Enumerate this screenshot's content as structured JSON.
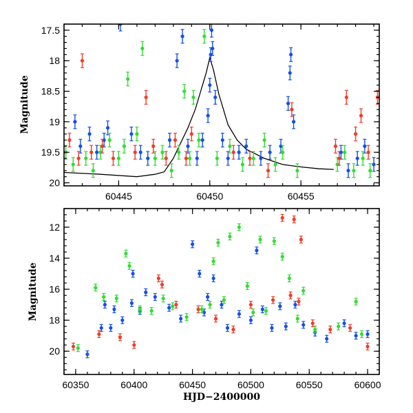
{
  "chart_data": [
    {
      "type": "scatter",
      "panel": "top",
      "title": "",
      "xlabel": "",
      "ylabel": "Magnitude",
      "xlim": [
        60442.0,
        60459.3
      ],
      "ylim": [
        20.05,
        17.4
      ],
      "y_inverted": true,
      "x_ticks": [
        60445,
        60450,
        60455
      ],
      "x_tick_labels": [
        "60445",
        "60450",
        "60455"
      ],
      "y_ticks": [
        17.5,
        18,
        18.5,
        19,
        19.5,
        20
      ],
      "y_tick_labels": [
        "17.5",
        "18",
        "18.5",
        "19",
        "19.5",
        "20"
      ],
      "grid": false,
      "legend": "none",
      "colors": {
        "blue": "#1450e6",
        "green": "#32dc32",
        "red": "#f03c28",
        "model": "#000000"
      },
      "model_curve": {
        "name": "",
        "x": [
          60442.0,
          60444.0,
          60446.0,
          60447.0,
          60447.5,
          60448.0,
          60448.4,
          60448.8,
          60449.2,
          60449.5,
          60449.8,
          60450.0,
          60450.2,
          60450.5,
          60451.0,
          60451.5,
          60452.0,
          60453.0,
          60454.0,
          60455.0,
          60456.0,
          60456.8
        ],
        "y": [
          19.83,
          19.86,
          19.9,
          19.86,
          19.82,
          19.6,
          19.35,
          19.1,
          18.8,
          18.5,
          18.2,
          17.95,
          18.15,
          18.55,
          19.05,
          19.3,
          19.45,
          19.6,
          19.7,
          19.74,
          19.77,
          19.78
        ]
      },
      "series": [
        {
          "color": "blue",
          "points": [
            [
              60442.6,
              19.0
            ],
            [
              60442.9,
              19.4
            ],
            [
              60443.4,
              19.2
            ],
            [
              60443.8,
              19.5
            ],
            [
              60444.2,
              19.3
            ],
            [
              60444.4,
              19.1
            ],
            [
              60445.1,
              17.4
            ],
            [
              60445.7,
              19.2
            ],
            [
              60446.2,
              19.5
            ],
            [
              60446.6,
              19.6
            ],
            [
              60447.8,
              19.3
            ],
            [
              60448.2,
              18.0
            ],
            [
              60448.5,
              17.6
            ],
            [
              60448.8,
              19.4
            ],
            [
              60449.3,
              19.6
            ],
            [
              60449.6,
              19.3
            ],
            [
              60449.9,
              18.9
            ],
            [
              60450.0,
              18.4
            ],
            [
              60450.05,
              17.9
            ],
            [
              60450.1,
              17.5
            ],
            [
              60450.15,
              17.8
            ],
            [
              60450.3,
              18.6
            ],
            [
              60450.7,
              19.3
            ],
            [
              60451.0,
              19.6
            ],
            [
              60451.6,
              19.5
            ],
            [
              60452.0,
              19.4
            ],
            [
              60452.8,
              19.6
            ],
            [
              60453.3,
              19.5
            ],
            [
              60453.9,
              19.4
            ],
            [
              60454.3,
              18.7
            ],
            [
              60454.4,
              18.2
            ],
            [
              60454.45,
              17.9
            ],
            [
              60454.6,
              19.0
            ],
            [
              60457.2,
              19.5
            ],
            [
              60457.6,
              19.8
            ],
            [
              60458.1,
              19.6
            ],
            [
              60458.5,
              19.4
            ],
            [
              60459.0,
              19.7
            ]
          ]
        },
        {
          "color": "green",
          "points": [
            [
              60442.1,
              19.5
            ],
            [
              60442.5,
              19.7
            ],
            [
              60443.2,
              19.6
            ],
            [
              60443.6,
              19.8
            ],
            [
              60444.0,
              19.5
            ],
            [
              60444.5,
              19.3
            ],
            [
              60445.0,
              19.6
            ],
            [
              60445.3,
              19.4
            ],
            [
              60445.5,
              18.3
            ],
            [
              60446.0,
              19.2
            ],
            [
              60446.3,
              17.8
            ],
            [
              60447.0,
              19.6
            ],
            [
              60447.4,
              19.5
            ],
            [
              60447.9,
              19.8
            ],
            [
              60448.3,
              19.5
            ],
            [
              60448.6,
              18.5
            ],
            [
              60448.9,
              19.6
            ],
            [
              60449.1,
              18.6
            ],
            [
              60449.4,
              19.3
            ],
            [
              60449.7,
              17.6
            ],
            [
              60450.4,
              19.6
            ],
            [
              60451.1,
              19.4
            ],
            [
              60451.8,
              19.7
            ],
            [
              60452.4,
              19.6
            ],
            [
              60453.0,
              19.3
            ],
            [
              60453.6,
              19.7
            ],
            [
              60454.0,
              19.5
            ],
            [
              60454.8,
              19.8
            ],
            [
              60457.0,
              19.7
            ],
            [
              60457.4,
              19.5
            ],
            [
              60457.9,
              19.8
            ],
            [
              60458.4,
              19.6
            ],
            [
              60458.8,
              19.8
            ]
          ]
        },
        {
          "color": "red",
          "points": [
            [
              60442.3,
              19.3
            ],
            [
              60442.8,
              19.6
            ],
            [
              60443.0,
              18.0
            ],
            [
              60443.5,
              19.5
            ],
            [
              60444.1,
              19.4
            ],
            [
              60444.7,
              19.6
            ],
            [
              60445.9,
              19.5
            ],
            [
              60446.5,
              18.6
            ],
            [
              60446.9,
              19.4
            ],
            [
              60447.6,
              19.6
            ],
            [
              60448.1,
              19.3
            ],
            [
              60448.7,
              19.6
            ],
            [
              60449.0,
              19.2
            ],
            [
              60451.3,
              19.5
            ],
            [
              60452.2,
              19.6
            ],
            [
              60453.2,
              19.8
            ],
            [
              60454.5,
              18.8
            ],
            [
              60456.9,
              19.4
            ],
            [
              60457.1,
              19.6
            ],
            [
              60457.5,
              18.6
            ],
            [
              60458.0,
              19.2
            ],
            [
              60458.3,
              18.9
            ],
            [
              60458.7,
              19.5
            ],
            [
              60459.2,
              18.6
            ]
          ]
        }
      ]
    },
    {
      "type": "scatter",
      "panel": "bottom",
      "title": "",
      "xlabel": "HJD−2400000",
      "ylabel": "Magnitude",
      "xlim": [
        60340,
        60610
      ],
      "ylim": [
        21.5,
        10.8
      ],
      "y_inverted": true,
      "x_ticks": [
        60350,
        60400,
        60450,
        60500,
        60550,
        60600
      ],
      "x_tick_labels": [
        "60350",
        "60400",
        "60450",
        "60500",
        "60550",
        "60600"
      ],
      "y_ticks": [
        12,
        14,
        16,
        18,
        20
      ],
      "y_tick_labels": [
        "12",
        "14",
        "16",
        "18",
        "20"
      ],
      "grid": false,
      "legend": "none",
      "series": [
        {
          "color": "blue",
          "points": [
            [
              60360,
              20.2
            ],
            [
              60372,
              18.5
            ],
            [
              60375,
              17.0
            ],
            [
              60380,
              18.5
            ],
            [
              60383,
              17.3
            ],
            [
              60390,
              18.0
            ],
            [
              60398,
              16.9
            ],
            [
              60399,
              15.0
            ],
            [
              60405,
              17.4
            ],
            [
              60410,
              16.2
            ],
            [
              60418,
              16.5
            ],
            [
              60430,
              17.2
            ],
            [
              60440,
              17.9
            ],
            [
              60450,
              13.1
            ],
            [
              60456,
              15.0
            ],
            [
              60460,
              17.5
            ],
            [
              60463,
              16.5
            ],
            [
              60468,
              15.3
            ],
            [
              60475,
              17.0
            ],
            [
              60480,
              18.5
            ],
            [
              60490,
              17.6
            ],
            [
              60500,
              18.0
            ],
            [
              60505,
              13.5
            ],
            [
              60510,
              17.3
            ],
            [
              60518,
              18.5
            ],
            [
              60525,
              17.1
            ],
            [
              60530,
              18.4
            ],
            [
              60538,
              17.0
            ],
            [
              60545,
              18.3
            ],
            [
              60555,
              18.8
            ],
            [
              60565,
              19.2
            ],
            [
              60580,
              18.2
            ],
            [
              60590,
              19.0
            ],
            [
              60600,
              18.9
            ]
          ]
        },
        {
          "color": "green",
          "points": [
            [
              60352,
              19.8
            ],
            [
              60367,
              15.9
            ],
            [
              60374,
              16.5
            ],
            [
              60385,
              16.6
            ],
            [
              60393,
              13.7
            ],
            [
              60396,
              14.5
            ],
            [
              60405,
              17.3
            ],
            [
              60415,
              17.4
            ],
            [
              60425,
              16.6
            ],
            [
              60433,
              17.1
            ],
            [
              60445,
              17.8
            ],
            [
              60458,
              17.3
            ],
            [
              60465,
              17.0
            ],
            [
              60468,
              14.2
            ],
            [
              60472,
              13.0
            ],
            [
              60477,
              16.7
            ],
            [
              60482,
              12.6
            ],
            [
              60490,
              12.0
            ],
            [
              60497,
              15.8
            ],
            [
              60502,
              17.5
            ],
            [
              60508,
              12.8
            ],
            [
              60513,
              17.4
            ],
            [
              60520,
              12.9
            ],
            [
              60527,
              13.9
            ],
            [
              60533,
              15.3
            ],
            [
              60540,
              17.9
            ],
            [
              60545,
              16.1
            ],
            [
              60555,
              18.6
            ],
            [
              60575,
              18.4
            ],
            [
              60590,
              16.8
            ],
            [
              60595,
              18.9
            ]
          ]
        },
        {
          "color": "red",
          "points": [
            [
              60348,
              19.7
            ],
            [
              60370,
              18.9
            ],
            [
              60388,
              19.1
            ],
            [
              60400,
              19.6
            ],
            [
              60421,
              15.3
            ],
            [
              60424,
              15.7
            ],
            [
              60436,
              17.0
            ],
            [
              60455,
              17.3
            ],
            [
              60470,
              17.9
            ],
            [
              60485,
              18.6
            ],
            [
              60500,
              17.0
            ],
            [
              60519,
              16.7
            ],
            [
              60527,
              11.4
            ],
            [
              60534,
              16.4
            ],
            [
              60537,
              11.5
            ],
            [
              60541,
              16.8
            ],
            [
              60543,
              12.8
            ],
            [
              60553,
              18.2
            ],
            [
              60568,
              18.6
            ],
            [
              60585,
              18.5
            ],
            [
              60600,
              19.7
            ]
          ]
        }
      ]
    }
  ]
}
